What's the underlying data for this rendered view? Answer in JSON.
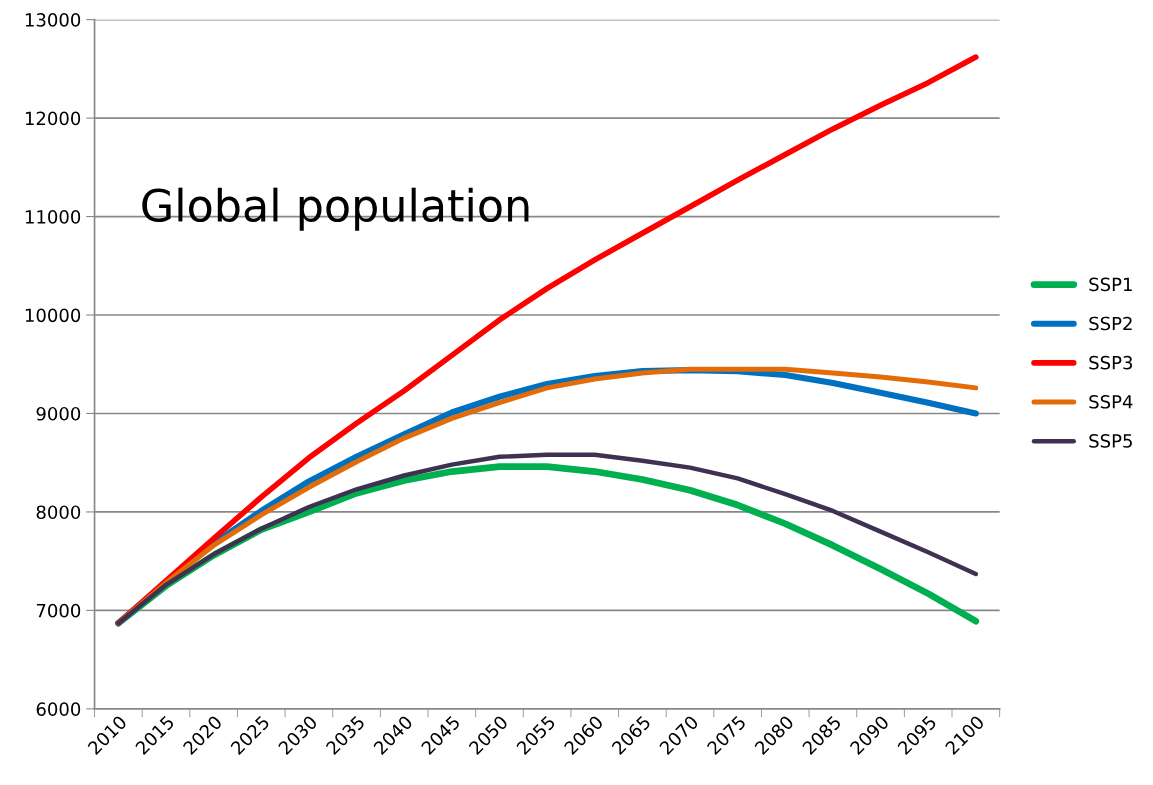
{
  "chart_data": {
    "type": "line",
    "title": "Global population",
    "categories": [
      "2010",
      "2015",
      "2020",
      "2025",
      "2030",
      "2035",
      "2040",
      "2045",
      "2050",
      "2055",
      "2060",
      "2065",
      "2070",
      "2075",
      "2080",
      "2085",
      "2090",
      "2095",
      "2100"
    ],
    "series": [
      {
        "name": "SSP1",
        "color": "#00b050",
        "values": [
          6870,
          7250,
          7560,
          7820,
          8000,
          8190,
          8320,
          8410,
          8460,
          8460,
          8410,
          8330,
          8220,
          8070,
          7880,
          7660,
          7420,
          7170,
          6890
        ]
      },
      {
        "name": "SSP2",
        "color": "#0070c0",
        "values": [
          6870,
          7290,
          7680,
          8010,
          8310,
          8560,
          8790,
          9010,
          9170,
          9300,
          9380,
          9430,
          9440,
          9430,
          9390,
          9310,
          9210,
          9110,
          9000
        ]
      },
      {
        "name": "SSP3",
        "color": "#ff0000",
        "values": [
          6870,
          7300,
          7730,
          8150,
          8550,
          8900,
          9230,
          9590,
          9950,
          10270,
          10560,
          10830,
          11100,
          11370,
          11630,
          11890,
          12130,
          12360,
          12620
        ]
      },
      {
        "name": "SSP4",
        "color": "#e36c09",
        "values": [
          6870,
          7280,
          7660,
          7970,
          8250,
          8510,
          8750,
          8950,
          9110,
          9260,
          9350,
          9410,
          9450,
          9450,
          9450,
          9410,
          9370,
          9320,
          9260
        ]
      },
      {
        "name": "SSP5",
        "color": "#3f3151",
        "values": [
          6870,
          7260,
          7570,
          7830,
          8050,
          8230,
          8370,
          8480,
          8560,
          8580,
          8580,
          8520,
          8450,
          8340,
          8180,
          8010,
          7800,
          7590,
          7370
        ]
      }
    ],
    "ylim": [
      6000,
      13000
    ],
    "yticks": [
      6000,
      7000,
      8000,
      9000,
      10000,
      11000,
      12000,
      13000
    ],
    "grid": "y",
    "legend": "right",
    "marker": "none",
    "line_style": "solid"
  }
}
